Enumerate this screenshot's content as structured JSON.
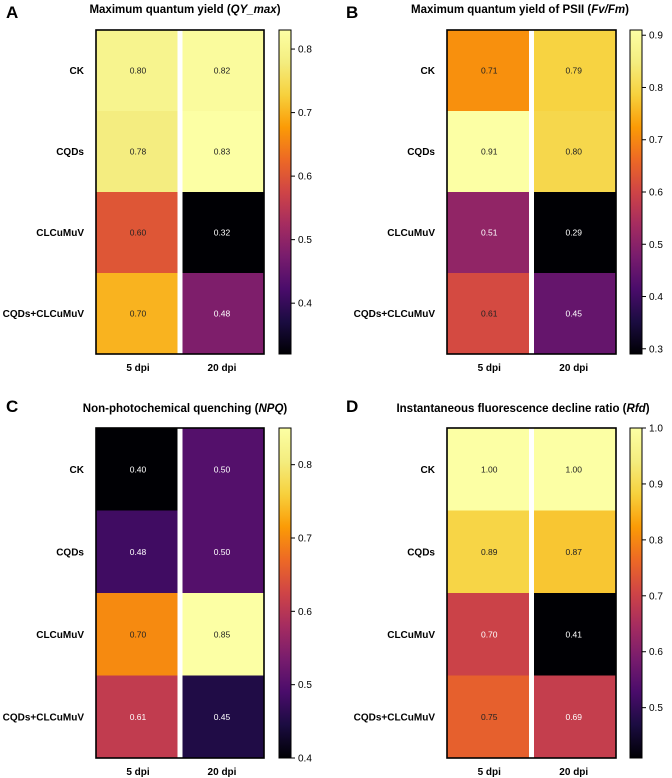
{
  "figure": {
    "panels": [
      "A",
      "B",
      "C",
      "D"
    ]
  },
  "chart_data": [
    {
      "type": "heatmap",
      "panel": "A",
      "title_prefix": "Maximum quantum yield (",
      "title_italic": "QY_max",
      "title_suffix": ")",
      "rows": [
        "CK",
        "CQDs",
        "CLCuMuV",
        "CQDs+CLCuMuV"
      ],
      "columns": [
        "5 dpi",
        "20 dpi"
      ],
      "values": [
        [
          0.8,
          0.82
        ],
        [
          0.78,
          0.83
        ],
        [
          0.6,
          0.32
        ],
        [
          0.7,
          0.48
        ]
      ],
      "labels": [
        [
          "0.80",
          "0.82"
        ],
        [
          "0.78",
          "0.83"
        ],
        [
          "0.60",
          "0.32"
        ],
        [
          "0.70",
          "0.48"
        ]
      ],
      "colorbar": {
        "min": 0.32,
        "max": 0.83,
        "ticks": [
          0.4,
          0.5,
          0.6,
          0.7,
          0.8
        ],
        "tick_labels": [
          "0.4",
          "0.5",
          "0.6",
          "0.7",
          "0.8"
        ]
      },
      "colormap": "inferno"
    },
    {
      "type": "heatmap",
      "panel": "B",
      "title_prefix": "Maximum quantum yield of PSII (",
      "title_italic": "Fv/Fm",
      "title_suffix": ")",
      "rows": [
        "CK",
        "CQDs",
        "CLCuMuV",
        "CQDs+CLCuMuV"
      ],
      "columns": [
        "5 dpi",
        "20 dpi"
      ],
      "values": [
        [
          0.71,
          0.79
        ],
        [
          0.91,
          0.8
        ],
        [
          0.51,
          0.29
        ],
        [
          0.61,
          0.45
        ]
      ],
      "labels": [
        [
          "0.71",
          "0.79"
        ],
        [
          "0.91",
          "0.80"
        ],
        [
          "0.51",
          "0.29"
        ],
        [
          "0.61",
          "0.45"
        ]
      ],
      "colorbar": {
        "min": 0.29,
        "max": 0.91,
        "ticks": [
          0.3,
          0.4,
          0.5,
          0.6,
          0.7,
          0.8,
          0.9
        ],
        "tick_labels": [
          "0.3",
          "0.4",
          "0.5",
          "0.6",
          "0.7",
          "0.8",
          "0.9"
        ]
      },
      "colormap": "inferno"
    },
    {
      "type": "heatmap",
      "panel": "C",
      "title_prefix": "Non-photochemical quenching (",
      "title_italic": "NPQ",
      "title_suffix": ")",
      "rows": [
        "CK",
        "CQDs",
        "CLCuMuV",
        "CQDs+CLCuMuV"
      ],
      "columns": [
        "5 dpi",
        "20 dpi"
      ],
      "values": [
        [
          0.4,
          0.5
        ],
        [
          0.48,
          0.5
        ],
        [
          0.7,
          0.85
        ],
        [
          0.61,
          0.45
        ]
      ],
      "labels": [
        [
          "0.40",
          "0.50"
        ],
        [
          "0.48",
          "0.50"
        ],
        [
          "0.70",
          "0.85"
        ],
        [
          "0.61",
          "0.45"
        ]
      ],
      "colorbar": {
        "min": 0.4,
        "max": 0.85,
        "ticks": [
          0.4,
          0.5,
          0.6,
          0.7,
          0.8
        ],
        "tick_labels": [
          "0.4",
          "0.5",
          "0.6",
          "0.7",
          "0.8"
        ]
      },
      "colormap": "inferno"
    },
    {
      "type": "heatmap",
      "panel": "D",
      "title_prefix": "Instantaneous fluorescence decline ratio (",
      "title_italic": "Rfd",
      "title_suffix": ")",
      "rows": [
        "CK",
        "CQDs",
        "CLCuMuV",
        "CQDs+CLCuMuV"
      ],
      "columns": [
        "5 dpi",
        "20 dpi"
      ],
      "values": [
        [
          1.0,
          1.0
        ],
        [
          0.89,
          0.87
        ],
        [
          0.7,
          0.41
        ],
        [
          0.75,
          0.69
        ]
      ],
      "labels": [
        [
          "1.00",
          "1.00"
        ],
        [
          "0.89",
          "0.87"
        ],
        [
          "0.70",
          "0.41"
        ],
        [
          "0.75",
          "0.69"
        ]
      ],
      "colorbar": {
        "min": 0.41,
        "max": 1.0,
        "ticks": [
          0.5,
          0.6,
          0.7,
          0.8,
          0.9,
          1.0
        ],
        "tick_labels": [
          "0.5",
          "0.6",
          "0.7",
          "0.8",
          "0.9",
          "1.0"
        ]
      },
      "colormap": "inferno"
    }
  ]
}
